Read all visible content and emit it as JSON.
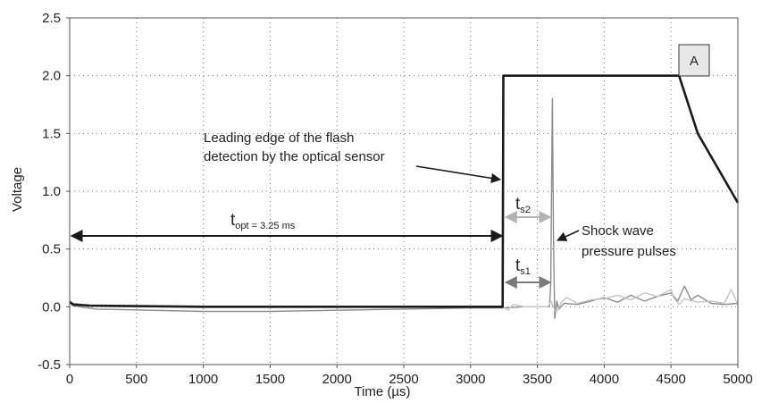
{
  "chart_data": {
    "type": "line",
    "xlabel": "Time (µs)",
    "ylabel": "Voltage",
    "xlim": [
      0,
      5000
    ],
    "ylim": [
      -0.5,
      2.5
    ],
    "x_ticks": [
      "0",
      "500",
      "1000",
      "1500",
      "2000",
      "2500",
      "3000",
      "3500",
      "4000",
      "4500",
      "5000"
    ],
    "y_ticks": [
      "2.5",
      "2.0",
      "1.5",
      "1.0",
      "0.5",
      "0.0",
      "-0.5"
    ],
    "grid": "dotted",
    "series": [
      {
        "color": "#1a1a1a",
        "x": [
          0,
          30,
          150,
          1000,
          2000,
          3000,
          3240,
          3245,
          4560,
          4700,
          5000
        ],
        "y": [
          0.04,
          0.02,
          0.01,
          0.0,
          0.0,
          0.0,
          0.0,
          2.0,
          2.0,
          1.5,
          0.9
        ]
      },
      {
        "color": "#8c8c8c",
        "x": [
          0,
          20,
          200,
          1000,
          1500,
          2000,
          2500,
          3000,
          3240,
          3400,
          3500,
          3560,
          3590,
          3600,
          3605,
          3612,
          3620,
          3630,
          3645,
          3660,
          3700,
          3800,
          3900,
          4000,
          4100,
          4200,
          4300,
          4400,
          4500,
          4550,
          4600,
          4650,
          4700,
          4800,
          4900,
          5000
        ],
        "y": [
          0.06,
          0.01,
          -0.02,
          -0.04,
          -0.04,
          -0.03,
          -0.02,
          -0.01,
          -0.01,
          0.0,
          0.0,
          0.0,
          0.0,
          0.2,
          0.9,
          1.8,
          0.6,
          -0.1,
          0.05,
          -0.02,
          0.03,
          0.02,
          0.05,
          0.08,
          0.04,
          0.1,
          0.05,
          0.09,
          0.12,
          0.05,
          0.18,
          0.06,
          0.1,
          0.03,
          0.02,
          0.03
        ]
      },
      {
        "color": "#c4c4c4",
        "x": [
          3240,
          3280,
          3320,
          3400,
          3500,
          3580,
          3600,
          3640,
          3680,
          3720,
          3800,
          3900,
          4000,
          4100,
          4200,
          4300,
          4400,
          4500,
          4520,
          4560,
          4600,
          4700,
          4800,
          4900,
          4950,
          5000
        ],
        "y": [
          0.0,
          -0.03,
          0.02,
          0.0,
          0.0,
          0.0,
          0.05,
          -0.05,
          0.04,
          0.08,
          0.03,
          0.06,
          0.07,
          0.1,
          0.06,
          0.12,
          0.09,
          0.15,
          0.08,
          0.02,
          0.07,
          0.04,
          0.05,
          0.03,
          0.15,
          0.02
        ]
      }
    ],
    "annotations": {
      "box_label": "A",
      "leading_edge_line1": "Leading edge of the flash",
      "leading_edge_line2": "detection by the optical sensor",
      "topt_main": "t",
      "topt_sub": "opt = 3.25 ms",
      "ts2_main": "t",
      "ts2_sub": "s2",
      "ts1_main": "t",
      "ts1_sub": "s1",
      "shock_line1": "Shock wave",
      "shock_line2": "pressure pulses"
    },
    "arrows": {
      "topt": [
        0,
        3250
      ],
      "ts2": [
        3250,
        3610
      ],
      "ts1": [
        3250,
        3610
      ]
    }
  }
}
